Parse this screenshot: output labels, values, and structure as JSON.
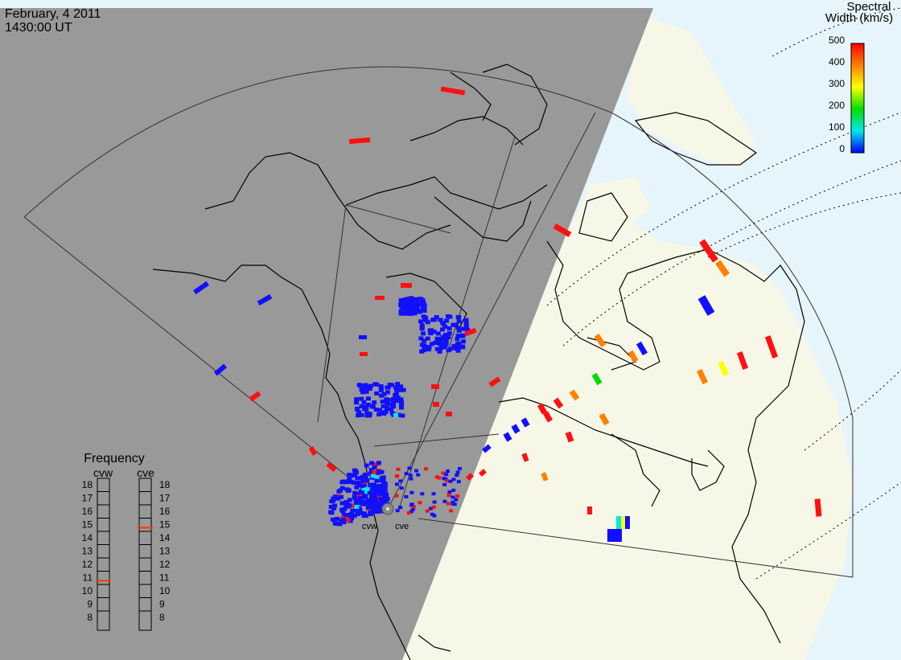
{
  "header": {
    "date": "February, 4 2011",
    "time": "1430:00 UT"
  },
  "colorbar": {
    "title_line1": "Spectral",
    "title_line2": "Width (km/s)",
    "ticks": [
      "500",
      "400",
      "300",
      "200",
      "100",
      "0"
    ],
    "colors": [
      "#ff0000",
      "#ff8000",
      "#ffff00",
      "#00e000",
      "#00e8e8",
      "#0000ff"
    ]
  },
  "frequency_panel": {
    "title": "Frequency",
    "radars": [
      "cvw",
      "cve"
    ],
    "ticks": [
      "18",
      "17",
      "16",
      "15",
      "14",
      "13",
      "12",
      "11",
      "10",
      "9",
      "8"
    ],
    "cvw_mhz": 11,
    "cve_mhz": 15,
    "indicator_color": "#ff3300"
  },
  "radar_sites": {
    "labels": [
      "cvw",
      "cve"
    ]
  },
  "colors": {
    "night_shade": "#999999",
    "day_land": "#f7f7e8",
    "day_ocean": "#e6f4fb",
    "scatter_low": "#1010ff",
    "scatter_high": "#ff1010"
  }
}
